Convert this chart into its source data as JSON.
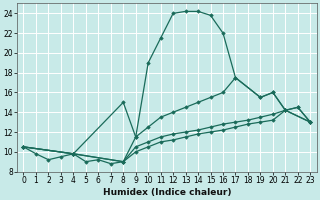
{
  "xlabel": "Humidex (Indice chaleur)",
  "ylabel": "",
  "background_color": "#c8eae8",
  "grid_color": "#ffffff",
  "line_color": "#1a6b5a",
  "xlim": [
    -0.5,
    23.5
  ],
  "ylim": [
    8,
    25
  ],
  "xticks": [
    0,
    1,
    2,
    3,
    4,
    5,
    6,
    7,
    8,
    9,
    10,
    11,
    12,
    13,
    14,
    15,
    16,
    17,
    18,
    19,
    20,
    21,
    22,
    23
  ],
  "yticks": [
    8,
    10,
    12,
    14,
    16,
    18,
    20,
    22,
    24
  ],
  "line_main": {
    "x": [
      0,
      1,
      2,
      3,
      4,
      5,
      6,
      7,
      8,
      9,
      10,
      11,
      12,
      13,
      14,
      15,
      16,
      17,
      19,
      20,
      21,
      23
    ],
    "y": [
      10.5,
      9.8,
      9.2,
      9.5,
      9.8,
      9.0,
      9.2,
      8.8,
      9.0,
      11.5,
      19.0,
      21.5,
      24.0,
      24.2,
      24.2,
      23.8,
      22.0,
      17.5,
      15.5,
      16.0,
      14.2,
      13.0
    ]
  },
  "line_spike": {
    "x": [
      0,
      4,
      8,
      9,
      10,
      11,
      12,
      13,
      14,
      15,
      16,
      17,
      19,
      20,
      21,
      23
    ],
    "y": [
      10.5,
      9.8,
      15.0,
      11.5,
      12.5,
      13.5,
      14.0,
      14.5,
      15.0,
      15.5,
      16.0,
      17.5,
      15.5,
      16.0,
      14.2,
      13.0
    ]
  },
  "line_flat1": {
    "x": [
      0,
      4,
      8,
      9,
      10,
      11,
      12,
      13,
      14,
      15,
      16,
      17,
      18,
      19,
      20,
      21,
      22,
      23
    ],
    "y": [
      10.5,
      9.8,
      9.0,
      10.5,
      11.0,
      11.5,
      11.8,
      12.0,
      12.2,
      12.5,
      12.8,
      13.0,
      13.2,
      13.5,
      13.8,
      14.2,
      14.5,
      13.0
    ]
  },
  "line_flat2": {
    "x": [
      0,
      4,
      8,
      9,
      10,
      11,
      12,
      13,
      14,
      15,
      16,
      17,
      18,
      19,
      20,
      21,
      22,
      23
    ],
    "y": [
      10.5,
      9.8,
      9.0,
      10.0,
      10.5,
      11.0,
      11.2,
      11.5,
      11.8,
      12.0,
      12.2,
      12.5,
      12.8,
      13.0,
      13.2,
      14.2,
      14.5,
      13.0
    ]
  }
}
